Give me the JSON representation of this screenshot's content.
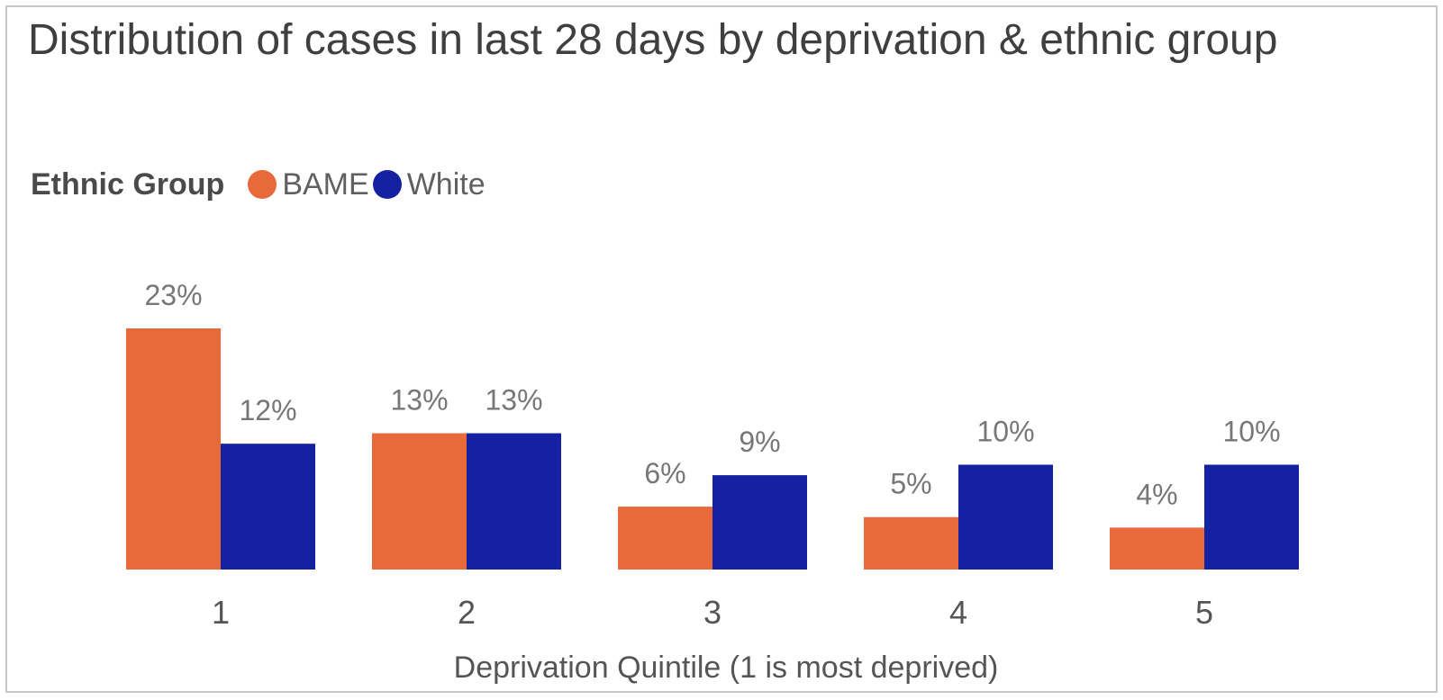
{
  "title": "Distribution of cases in last 28 days by deprivation & ethnic group",
  "legend": {
    "title": "Ethnic Group",
    "placement": "top-left"
  },
  "colors": {
    "BAME": "#e8693a",
    "White": "#1421a0",
    "label_text": "#777777",
    "axis_text": "#555555"
  },
  "chart_data": {
    "type": "bar",
    "title": "Distribution of cases in last 28 days by deprivation & ethnic group",
    "xlabel": "Deprivation Quintile (1 is most deprived)",
    "ylabel": "",
    "categories": [
      "1",
      "2",
      "3",
      "4",
      "5"
    ],
    "series": [
      {
        "name": "BAME",
        "values": [
          23,
          13,
          6,
          5,
          4
        ],
        "labels": [
          "23%",
          "13%",
          "6%",
          "5%",
          "4%"
        ]
      },
      {
        "name": "White",
        "values": [
          12,
          13,
          9,
          10,
          10
        ],
        "labels": [
          "12%",
          "13%",
          "9%",
          "10%",
          "10%"
        ]
      }
    ],
    "value_format": "percent",
    "ylim": [
      0,
      23
    ],
    "grid": false,
    "y_axis_visible": false,
    "data_labels": true,
    "legend_placement": "top-left"
  }
}
